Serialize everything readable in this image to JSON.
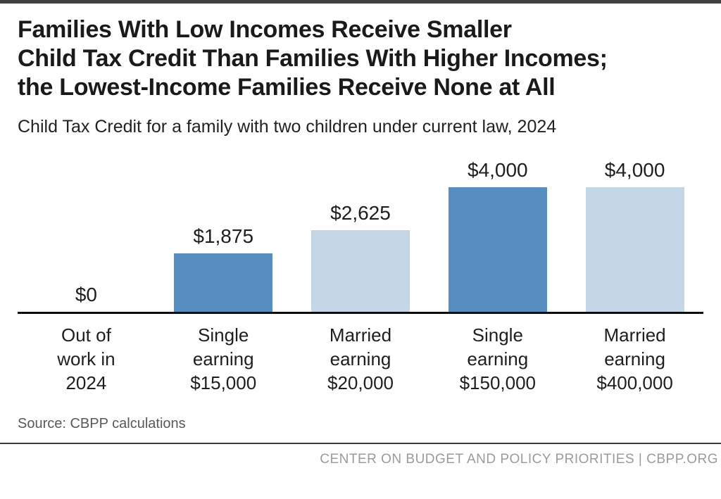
{
  "header": {
    "title": "Families With Low Incomes Receive Smaller\nChild Tax Credit Than Families With Higher Incomes;\nthe Lowest-Income Families Receive None at All",
    "subtitle": "Child Tax Credit for a family with two children under current law, 2024"
  },
  "chart_data": {
    "type": "bar",
    "title": "Families With Low Incomes Receive Smaller Child Tax Credit Than Families With Higher Incomes; the Lowest-Income Families Receive None at All",
    "subtitle": "Child Tax Credit for a family with two children under current law, 2024",
    "categories": [
      "Out of work in 2024",
      "Single earning $15,000",
      "Married earning $20,000",
      "Single earning $150,000",
      "Married earning $400,000"
    ],
    "tick_labels": [
      "Out of\nwork in\n2024",
      "Single\nearning\n$15,000",
      "Married\nearning\n$20,000",
      "Single\nearning\n$150,000",
      "Married\nearning\n$400,000"
    ],
    "values": [
      0,
      1875,
      2625,
      4000,
      4000
    ],
    "value_labels": [
      "$0",
      "$1,875",
      "$2,625",
      "$4,000",
      "$4,000"
    ],
    "bar_colors": [
      "transparent",
      "#568EBF",
      "#C5D6E7",
      "#568EBF",
      "#C5D6E7"
    ],
    "xlabel": "",
    "ylabel": "",
    "ylim": [
      0,
      4000
    ],
    "grid": false,
    "legend_position": "none"
  },
  "footer": {
    "source": "Source: CBPP calculations",
    "org": "CENTER ON BUDGET AND POLICY PRIORITIES | CBPP.ORG"
  },
  "colors": {
    "bar_dark": "#568EBF",
    "bar_light": "#C5D6E7",
    "top_bar": "#404040",
    "axis": "#0D0D0D",
    "divider": "#3A3A3A",
    "source_text": "#58595B",
    "footer_text": "#9B9B9B"
  }
}
